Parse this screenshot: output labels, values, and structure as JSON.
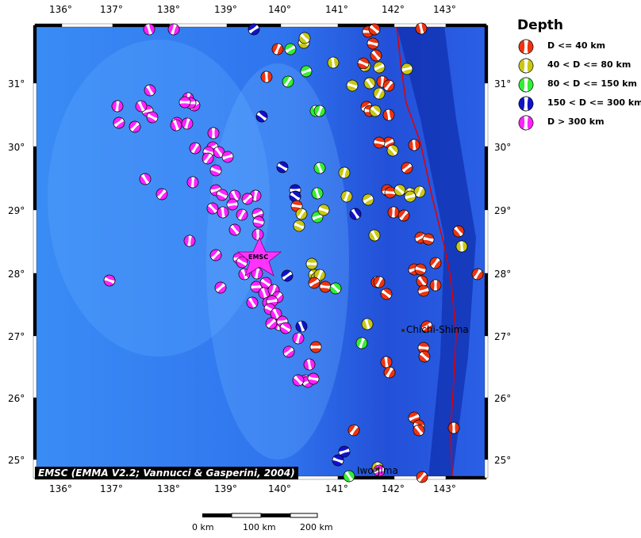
{
  "map": {
    "lon_ticks": [
      "136°",
      "137°",
      "138°",
      "139°",
      "140°",
      "141°",
      "142°",
      "143°"
    ],
    "lat_ticks": [
      "31°",
      "30°",
      "29°",
      "28°",
      "27°",
      "26°",
      "25°"
    ],
    "credit": "EMSC (EMMA V2.2; Vannucci & Gasperini, 2004)",
    "epicenter_label": "EMSC",
    "places": [
      "Chichi-Shima",
      "Iwo-Jima"
    ],
    "scale_labels": [
      "0 km",
      "100 km",
      "200 km"
    ],
    "colors": {
      "ocean": "#2a6ef0",
      "trench": "#0a1fa0",
      "plate_boundary": "#e00000",
      "epicenter": "#ff33ff"
    }
  },
  "legend": {
    "title": "Depth",
    "items": [
      {
        "label": "D <= 40 km",
        "color": "#ee3311"
      },
      {
        "label": "40 < D <= 80 km",
        "color": "#c8c814"
      },
      {
        "label": "80 < D <= 150 km",
        "color": "#33ee33"
      },
      {
        "label": "150 < D <= 300 km",
        "color": "#1111cc"
      },
      {
        "label": "D > 300 km",
        "color": "#ff22ff"
      }
    ]
  }
}
